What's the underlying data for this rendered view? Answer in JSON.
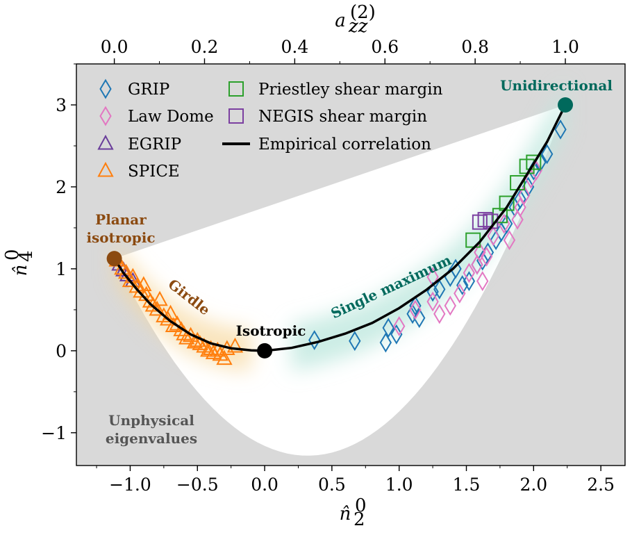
{
  "chart_data": {
    "type": "scatter",
    "xlabel": "n̂",
    "xlabel_sup": "0",
    "xlabel_sub": "2",
    "ylabel": "n̂",
    "ylabel_sup": "0",
    "ylabel_sub": "4",
    "top_xlabel": "a",
    "top_xlabel_sup": "(2)",
    "top_xlabel_sub": "zz",
    "xlim": [
      -1.4,
      2.68
    ],
    "ylim": [
      -1.4,
      3.5
    ],
    "xticks": [
      -1.0,
      -0.5,
      0.0,
      0.5,
      1.0,
      1.5,
      2.0,
      2.5
    ],
    "xtick_labels": [
      "−1.0",
      "−0.5",
      "0.0",
      "0.5",
      "1.0",
      "1.5",
      "2.0",
      "2.5"
    ],
    "yticks": [
      -1,
      0,
      1,
      2,
      3
    ],
    "ytick_labels": [
      "−1",
      "0",
      "1",
      "2",
      "3"
    ],
    "top_ticks": [
      0.0,
      0.2,
      0.4,
      0.6,
      0.8,
      1.0
    ],
    "top_tick_labels": [
      "0.0",
      "0.2",
      "0.4",
      "0.6",
      "0.8",
      "1.0"
    ],
    "legend_position": "upper-left",
    "colors": {
      "unphysical": "#d9d9d9",
      "GRIP": "#1f77b4",
      "Law Dome": "#e377c2",
      "EGRIP": "#6a3d9a",
      "SPICE": "#ff7f0e",
      "Priestley shear margin": "#2ca02c",
      "NEGIS shear margin": "#7b3fa0",
      "Empirical correlation": "#000000",
      "planar": "#8b4a10",
      "isotropic": "#000000",
      "unidirectional": "#00695c",
      "single": "#00695c",
      "girdle": "#8b4a10",
      "unphysical_text": "#555555"
    },
    "region_labels": {
      "unidirectional": "Unidirectional",
      "planar_line1": "Planar",
      "planar_line2": "isotropic",
      "girdle": "Girdle",
      "isotropic": "Isotropic",
      "single": "Single maximum",
      "unphysical_line1": "Unphysical",
      "unphysical_line2": "eigenvalues"
    },
    "special_points": [
      {
        "name": "Planar isotropic",
        "x": -1.118,
        "y": 1.125
      },
      {
        "name": "Isotropic",
        "x": 0.0,
        "y": 0.0
      },
      {
        "name": "Unidirectional",
        "x": 2.236,
        "y": 3.0
      }
    ],
    "series": [
      {
        "name": "GRIP",
        "marker": "diamond",
        "x": [
          0.37,
          0.67,
          0.9,
          0.92,
          0.98,
          1.1,
          1.12,
          1.15,
          1.25,
          1.3,
          1.38,
          1.42,
          1.47,
          1.52,
          1.58,
          1.62,
          1.66,
          1.72,
          1.76,
          1.8,
          1.86,
          1.9,
          1.96,
          2.0,
          2.05,
          2.1,
          2.2
        ],
        "y": [
          0.13,
          0.12,
          0.1,
          0.28,
          0.2,
          0.45,
          0.55,
          0.4,
          0.72,
          0.75,
          0.9,
          1.0,
          0.8,
          0.85,
          1.05,
          1.1,
          1.2,
          1.35,
          1.45,
          1.55,
          1.75,
          1.85,
          2.0,
          2.2,
          2.3,
          2.4,
          2.7
        ]
      },
      {
        "name": "Law Dome",
        "marker": "diamond",
        "x": [
          1.0,
          1.12,
          1.25,
          1.25,
          1.3,
          1.38,
          1.45,
          1.52,
          1.58,
          1.6,
          1.62,
          1.65,
          1.7,
          1.78,
          1.82,
          1.88,
          1.9,
          1.93,
          1.98,
          2.02
        ],
        "y": [
          0.3,
          0.5,
          0.6,
          0.9,
          0.45,
          0.55,
          0.7,
          0.95,
          1.05,
          1.2,
          0.85,
          1.15,
          1.4,
          1.55,
          1.35,
          1.6,
          1.75,
          1.9,
          2.1,
          2.2
        ]
      },
      {
        "name": "EGRIP",
        "marker": "triangle",
        "x": [
          -1.08,
          -1.05,
          -1.02,
          -0.98
        ],
        "y": [
          1.05,
          0.98,
          0.92,
          0.85
        ]
      },
      {
        "name": "SPICE",
        "marker": "triangle",
        "x": [
          -1.1,
          -1.06,
          -1.03,
          -1.0,
          -0.98,
          -0.95,
          -0.92,
          -0.9,
          -0.88,
          -0.85,
          -0.83,
          -0.8,
          -0.78,
          -0.75,
          -0.72,
          -0.7,
          -0.68,
          -0.65,
          -0.62,
          -0.6,
          -0.58,
          -0.55,
          -0.52,
          -0.5,
          -0.48,
          -0.45,
          -0.42,
          -0.4,
          -0.38,
          -0.35,
          -0.33,
          -0.3,
          -0.28,
          -0.22
        ],
        "y": [
          1.1,
          1.0,
          0.95,
          0.85,
          0.9,
          0.78,
          0.72,
          0.8,
          0.68,
          0.6,
          0.55,
          0.5,
          0.62,
          0.42,
          0.38,
          0.45,
          0.3,
          0.32,
          0.25,
          0.2,
          0.15,
          0.18,
          0.1,
          0.12,
          0.08,
          0.05,
          0.0,
          0.02,
          -0.03,
          0.0,
          -0.05,
          -0.1,
          0.02,
          0.05
        ]
      },
      {
        "name": "Priestley shear margin",
        "marker": "square",
        "x": [
          1.55,
          1.75,
          1.8,
          1.88,
          1.95,
          2.0
        ],
        "y": [
          1.35,
          1.65,
          1.8,
          2.05,
          2.25,
          2.3
        ]
      },
      {
        "name": "NEGIS shear margin",
        "marker": "square",
        "x": [
          1.6,
          1.64,
          1.68
        ],
        "y": [
          1.57,
          1.6,
          1.58
        ]
      },
      {
        "name": "Empirical correlation",
        "marker": "line",
        "x": [
          -1.118,
          -1.05,
          -0.95,
          -0.85,
          -0.7,
          -0.55,
          -0.4,
          -0.25,
          -0.1,
          0.0,
          0.2,
          0.4,
          0.6,
          0.8,
          1.0,
          1.2,
          1.4,
          1.6,
          1.8,
          1.95,
          2.1,
          2.236
        ],
        "y": [
          1.125,
          0.95,
          0.75,
          0.57,
          0.36,
          0.2,
          0.09,
          0.03,
          0.005,
          0.0,
          0.035,
          0.11,
          0.21,
          0.34,
          0.52,
          0.74,
          1.0,
          1.33,
          1.75,
          2.15,
          2.55,
          3.0
        ]
      }
    ]
  }
}
